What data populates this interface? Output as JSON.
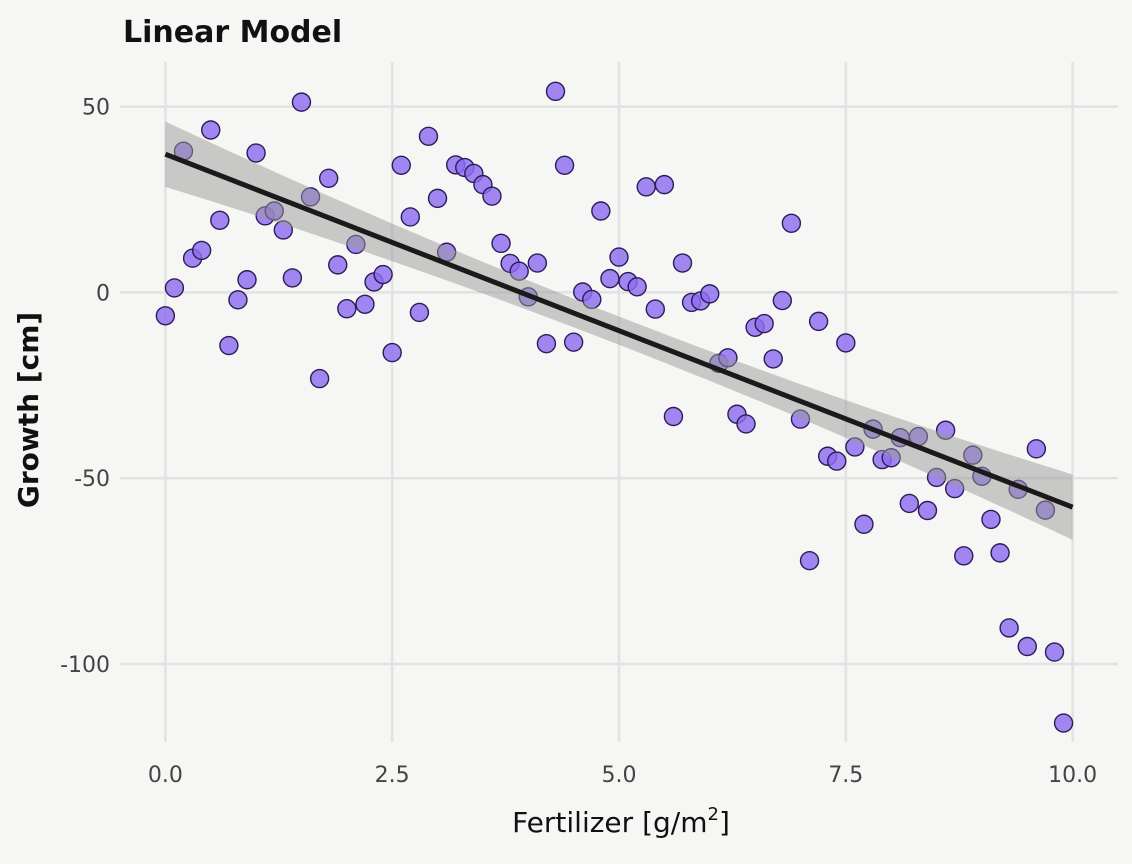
{
  "chart_data": {
    "type": "scatter",
    "title": "Linear Model",
    "xlabel": "Fertilizer [g/m",
    "xlabel_superscript": "2",
    "xlabel_close": "]",
    "ylabel": "Growth [cm]",
    "xlim": [
      -0.5,
      10.5
    ],
    "ylim": [
      -121,
      62
    ],
    "x_ticks": [
      0.0,
      2.5,
      5.0,
      7.5,
      10.0
    ],
    "x_tick_labels": [
      "0.0",
      "2.5",
      "5.0",
      "7.5",
      "10.0"
    ],
    "y_ticks": [
      50,
      0,
      -50,
      -100
    ],
    "y_tick_labels": [
      "50",
      "0",
      "-50",
      "-100"
    ],
    "grid": true,
    "legend": "none",
    "colors": {
      "points": "#8e6cf0",
      "point_edge": "#2b1d57",
      "fit_line": "#1a1a1a",
      "confidence_band": "#9a9a9a",
      "background": "#f6f6f4"
    },
    "fit": {
      "type": "linear",
      "intercept": 37.2,
      "slope": -9.5,
      "band_half_width_at_ends": 8.8,
      "band_half_width_center": 3.8
    },
    "points": [
      {
        "x": 0.0,
        "y": -6.3
      },
      {
        "x": 0.1,
        "y": 1.2
      },
      {
        "x": 0.2,
        "y": 38.0
      },
      {
        "x": 0.3,
        "y": 9.2
      },
      {
        "x": 0.4,
        "y": 11.3
      },
      {
        "x": 0.5,
        "y": 43.7
      },
      {
        "x": 0.6,
        "y": 19.4
      },
      {
        "x": 0.7,
        "y": -14.3
      },
      {
        "x": 0.8,
        "y": -2.0
      },
      {
        "x": 0.9,
        "y": 3.4
      },
      {
        "x": 1.0,
        "y": 37.5
      },
      {
        "x": 1.1,
        "y": 20.6
      },
      {
        "x": 1.2,
        "y": 21.9
      },
      {
        "x": 1.3,
        "y": 16.8
      },
      {
        "x": 1.4,
        "y": 3.9
      },
      {
        "x": 1.5,
        "y": 51.2
      },
      {
        "x": 1.6,
        "y": 25.7
      },
      {
        "x": 1.7,
        "y": -23.2
      },
      {
        "x": 1.8,
        "y": 30.7
      },
      {
        "x": 1.9,
        "y": 7.4
      },
      {
        "x": 2.0,
        "y": -4.4
      },
      {
        "x": 2.1,
        "y": 12.9
      },
      {
        "x": 2.2,
        "y": -3.2
      },
      {
        "x": 2.3,
        "y": 2.8
      },
      {
        "x": 2.4,
        "y": 4.8
      },
      {
        "x": 2.5,
        "y": -16.2
      },
      {
        "x": 2.6,
        "y": 34.2
      },
      {
        "x": 2.7,
        "y": 20.3
      },
      {
        "x": 2.8,
        "y": -5.4
      },
      {
        "x": 2.9,
        "y": 42.0
      },
      {
        "x": 3.0,
        "y": 25.3
      },
      {
        "x": 3.1,
        "y": 10.8
      },
      {
        "x": 3.2,
        "y": 34.3
      },
      {
        "x": 3.3,
        "y": 33.6
      },
      {
        "x": 3.4,
        "y": 32.0
      },
      {
        "x": 3.5,
        "y": 29.0
      },
      {
        "x": 3.6,
        "y": 25.9
      },
      {
        "x": 3.7,
        "y": 13.2
      },
      {
        "x": 3.8,
        "y": 7.8
      },
      {
        "x": 3.9,
        "y": 5.7
      },
      {
        "x": 4.0,
        "y": -1.2
      },
      {
        "x": 4.1,
        "y": 7.9
      },
      {
        "x": 4.2,
        "y": -13.8
      },
      {
        "x": 4.3,
        "y": 54.1
      },
      {
        "x": 4.4,
        "y": 34.2
      },
      {
        "x": 4.5,
        "y": -13.4
      },
      {
        "x": 4.6,
        "y": 0.1
      },
      {
        "x": 4.7,
        "y": -1.9
      },
      {
        "x": 4.8,
        "y": 21.9
      },
      {
        "x": 4.9,
        "y": 3.7
      },
      {
        "x": 5.0,
        "y": 9.5
      },
      {
        "x": 5.1,
        "y": 2.9
      },
      {
        "x": 5.2,
        "y": 1.5
      },
      {
        "x": 5.3,
        "y": 28.4
      },
      {
        "x": 5.4,
        "y": -4.5
      },
      {
        "x": 5.5,
        "y": 29.0
      },
      {
        "x": 5.6,
        "y": -33.4
      },
      {
        "x": 5.7,
        "y": 7.9
      },
      {
        "x": 5.8,
        "y": -2.7
      },
      {
        "x": 5.9,
        "y": -2.3
      },
      {
        "x": 6.0,
        "y": -0.4
      },
      {
        "x": 6.1,
        "y": -19.1
      },
      {
        "x": 6.2,
        "y": -17.6
      },
      {
        "x": 6.3,
        "y": -32.8
      },
      {
        "x": 6.4,
        "y": -35.4
      },
      {
        "x": 6.5,
        "y": -9.4
      },
      {
        "x": 6.6,
        "y": -8.4
      },
      {
        "x": 6.7,
        "y": -17.9
      },
      {
        "x": 6.8,
        "y": -2.2
      },
      {
        "x": 6.9,
        "y": 18.6
      },
      {
        "x": 7.0,
        "y": -34.1
      },
      {
        "x": 7.1,
        "y": -72.2
      },
      {
        "x": 7.2,
        "y": -7.8
      },
      {
        "x": 7.3,
        "y": -44.1
      },
      {
        "x": 7.4,
        "y": -45.4
      },
      {
        "x": 7.5,
        "y": -13.6
      },
      {
        "x": 7.6,
        "y": -41.6
      },
      {
        "x": 7.7,
        "y": -62.4
      },
      {
        "x": 7.8,
        "y": -36.8
      },
      {
        "x": 7.9,
        "y": -45.0
      },
      {
        "x": 8.0,
        "y": -44.5
      },
      {
        "x": 8.1,
        "y": -39.1
      },
      {
        "x": 8.2,
        "y": -56.8
      },
      {
        "x": 8.3,
        "y": -38.8
      },
      {
        "x": 8.4,
        "y": -58.7
      },
      {
        "x": 8.5,
        "y": -49.8
      },
      {
        "x": 8.6,
        "y": -37.1
      },
      {
        "x": 8.7,
        "y": -52.8
      },
      {
        "x": 8.8,
        "y": -70.9
      },
      {
        "x": 8.9,
        "y": -43.8
      },
      {
        "x": 9.0,
        "y": -49.5
      },
      {
        "x": 9.1,
        "y": -61.1
      },
      {
        "x": 9.2,
        "y": -70.1
      },
      {
        "x": 9.3,
        "y": -90.3
      },
      {
        "x": 9.4,
        "y": -53.0
      },
      {
        "x": 9.5,
        "y": -95.3
      },
      {
        "x": 9.6,
        "y": -42.1
      },
      {
        "x": 9.7,
        "y": -58.6
      },
      {
        "x": 9.8,
        "y": -96.8
      },
      {
        "x": 9.9,
        "y": -115.9
      }
    ]
  }
}
